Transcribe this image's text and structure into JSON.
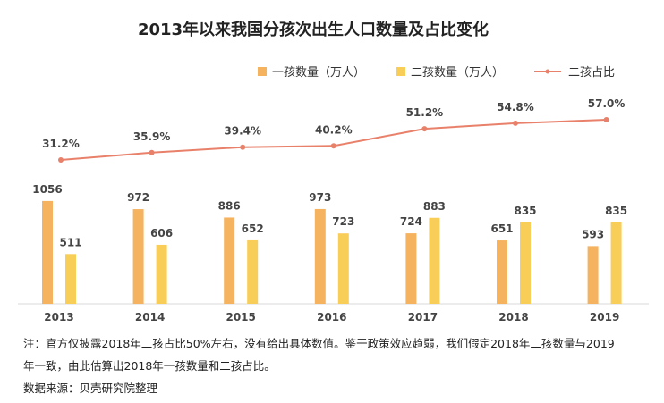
{
  "chart_data": {
    "type": "bar",
    "title": "2013年以来我国分孩次出生人口数量及占比变化",
    "categories": [
      "2013",
      "2014",
      "2015",
      "2016",
      "2017",
      "2018",
      "2019"
    ],
    "series": [
      {
        "name": "一孩数量（万人）",
        "type": "bar",
        "color": "#F5B35F",
        "values": [
          1056,
          972,
          886,
          973,
          724,
          651,
          593
        ]
      },
      {
        "name": "二孩数量（万人）",
        "type": "bar",
        "color": "#F8CD58",
        "values": [
          511,
          606,
          652,
          723,
          883,
          835,
          835
        ]
      },
      {
        "name": "二孩占比",
        "type": "line",
        "color": "#E8806A",
        "values": [
          31.2,
          35.9,
          39.4,
          40.2,
          51.2,
          54.8,
          57.0
        ],
        "labels": [
          "31.2%",
          "35.9%",
          "39.4%",
          "40.2%",
          "51.2%",
          "54.8%",
          "57.0%"
        ]
      }
    ],
    "legend": "top-right",
    "grid": false
  },
  "notes": {
    "line1": "注：官方仅披露2018年二孩占比50%左右，没有给出具体数值。鉴于政策效应趋弱，我们假定2018年二孩数量与2019",
    "line2": "年一致，由此估算出2018年一孩数量和二孩占比。",
    "source": "数据来源：贝壳研究院整理"
  }
}
